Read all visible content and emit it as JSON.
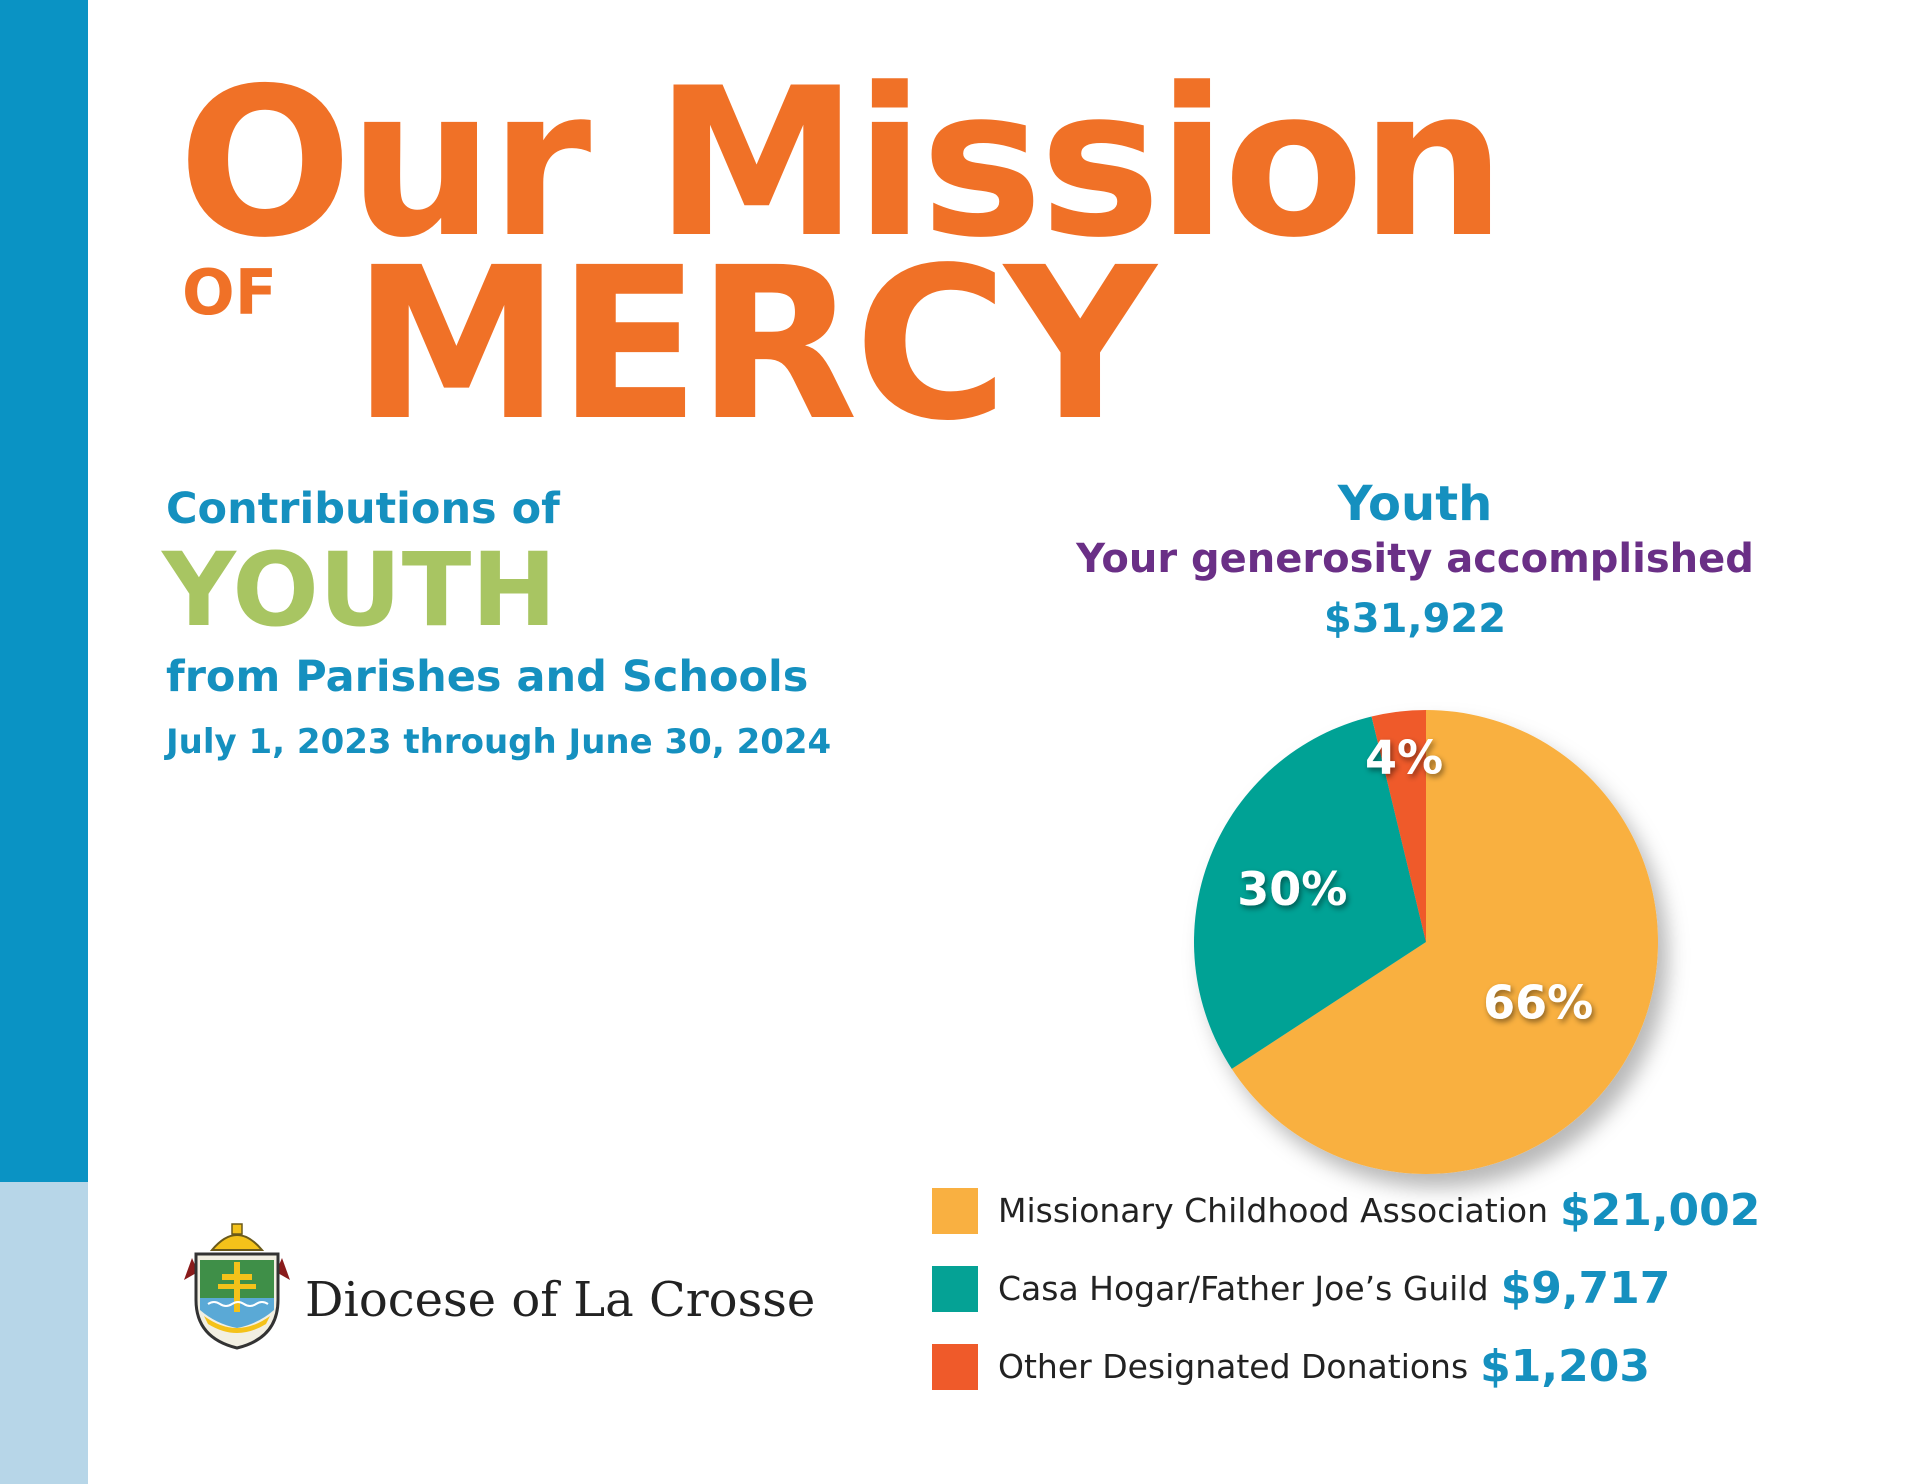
{
  "header": {
    "title_line1": "Our Mission",
    "title_of": "OF",
    "title_line2": "MERCY"
  },
  "intro": {
    "contributions": "Contributions of",
    "youth": "YOUTH",
    "from": "from Parishes and Schools",
    "dates": "July 1, 2023 through June 30, 2024"
  },
  "footer": {
    "diocese_name": "Diocese of La Crosse"
  },
  "icons": {
    "logo": "diocese-coat-of-arms-icon"
  },
  "chart_data": {
    "type": "pie",
    "title": "Youth",
    "subtitle": "Your generosity accomplished",
    "total": "$31,922",
    "legend_position": "bottom",
    "slices": [
      {
        "label": "Missionary Childhood Association",
        "amount": "$21,002",
        "value": 21002,
        "percent": 66,
        "percent_label": "66%",
        "color": "#f9b041"
      },
      {
        "label": "Casa Hogar/Father Joe’s Guild",
        "amount": "$9,717",
        "value": 9717,
        "percent": 30,
        "percent_label": "30%",
        "color": "#05a295"
      },
      {
        "label": "Other Designated Donations",
        "amount": "$1,203",
        "value": 1203,
        "percent": 4,
        "percent_label": "4%",
        "color": "#ef5a2a"
      }
    ]
  }
}
